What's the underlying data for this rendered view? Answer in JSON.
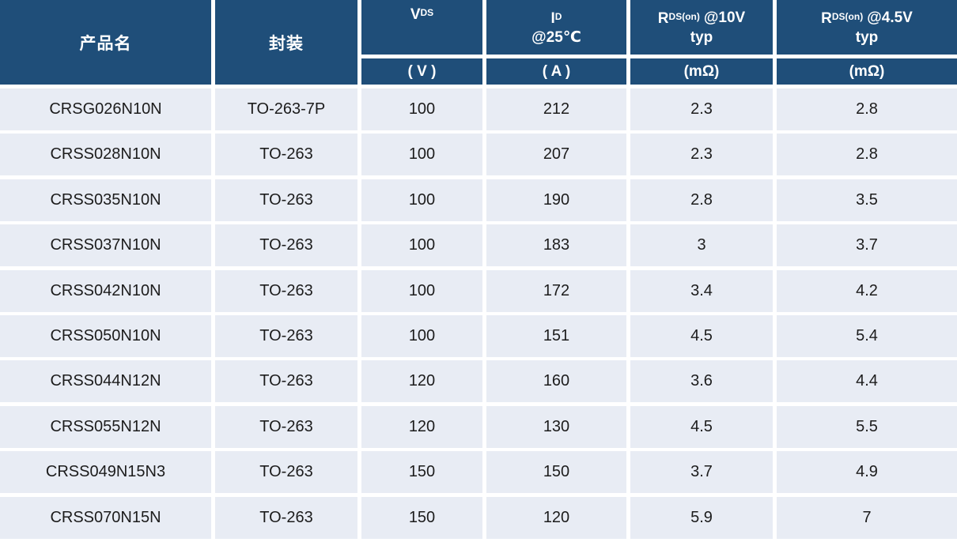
{
  "chart_data": {
    "type": "table",
    "title": "",
    "columns": [
      "产品名",
      "封装",
      "VDS (V)",
      "ID @25℃ (A)",
      "RDS(on) @10V typ (mΩ)",
      "RDS(on) @4.5V typ (mΩ)"
    ],
    "rows": [
      [
        "CRSG026N10N",
        "TO-263-7P",
        "100",
        "212",
        "2.3",
        "2.8"
      ],
      [
        "CRSS028N10N",
        "TO-263",
        "100",
        "207",
        "2.3",
        "2.8"
      ],
      [
        "CRSS035N10N",
        "TO-263",
        "100",
        "190",
        "2.8",
        "3.5"
      ],
      [
        "CRSS037N10N",
        "TO-263",
        "100",
        "183",
        "3",
        "3.7"
      ],
      [
        "CRSS042N10N",
        "TO-263",
        "100",
        "172",
        "3.4",
        "4.2"
      ],
      [
        "CRSS050N10N",
        "TO-263",
        "100",
        "151",
        "4.5",
        "5.4"
      ],
      [
        "CRSS044N12N",
        "TO-263",
        "120",
        "160",
        "3.6",
        "4.4"
      ],
      [
        "CRSS055N12N",
        "TO-263",
        "120",
        "130",
        "4.5",
        "5.5"
      ],
      [
        "CRSS049N15N3",
        "TO-263",
        "150",
        "150",
        "3.7",
        "4.9"
      ],
      [
        "CRSS070N15N",
        "TO-263",
        "150",
        "120",
        "5.9",
        "7"
      ]
    ]
  },
  "header": {
    "product_label": "产品名",
    "package_label": "封装",
    "vds": {
      "main": "V",
      "sub": "DS",
      "unit": "( V )"
    },
    "id": {
      "main": "I",
      "sub": "D",
      "line2": "@25℃",
      "unit": "( A )"
    },
    "rds10": {
      "main": "R",
      "sub": "DS(on)",
      "rest": "@10V",
      "line2": "typ",
      "unit": "(mΩ)"
    },
    "rds45": {
      "main": "R",
      "sub": "DS(on)",
      "rest": "@4.5V",
      "line2": "typ",
      "unit": "(mΩ)"
    }
  },
  "colors": {
    "header_bg": "#1F4E79",
    "header_text": "#FFFFFF",
    "row_bg": "#E8ECF4",
    "gap": "#FFFFFF",
    "body_text": "#1C1C1C"
  }
}
